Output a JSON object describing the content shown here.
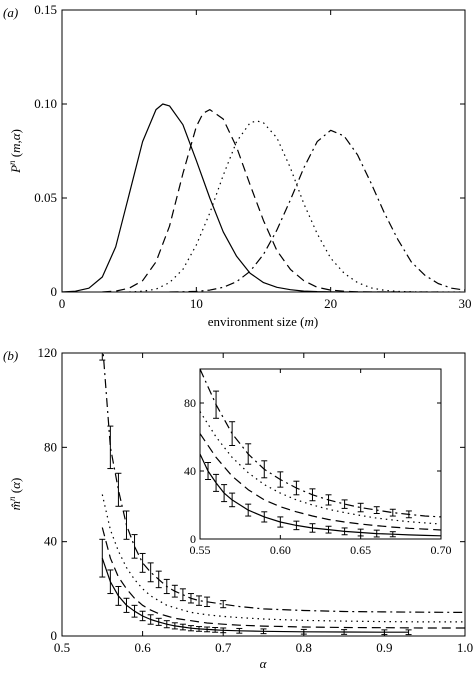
{
  "chart_data": [
    {
      "panel_label": "(a)",
      "type": "line",
      "xlabel": "environment size (m)",
      "ylabel": "P^n (m,α)",
      "xlim": [
        0,
        30
      ],
      "ylim": [
        0,
        0.15
      ],
      "xticks": [
        "0",
        "10",
        "20",
        "30"
      ],
      "yticks": [
        "0",
        "0.05",
        "0.10",
        "0.15"
      ],
      "series": [
        {
          "style": "solid",
          "x": [
            0,
            1,
            2,
            3,
            4,
            5,
            6,
            7,
            7.5,
            8,
            9,
            10,
            11,
            12,
            13,
            14,
            15,
            16,
            17,
            18,
            19,
            20,
            21,
            22,
            23,
            24,
            25
          ],
          "y": [
            0,
            0.0004,
            0.002,
            0.008,
            0.024,
            0.052,
            0.08,
            0.097,
            0.1,
            0.099,
            0.089,
            0.07,
            0.05,
            0.032,
            0.019,
            0.01,
            0.005,
            0.0025,
            0.0012,
            0.0005,
            0.0002,
            0.0001,
            0,
            0,
            0,
            0,
            0
          ]
        },
        {
          "style": "dashed",
          "x": [
            3,
            4,
            5,
            6,
            7,
            8,
            9,
            10,
            10.5,
            11,
            12,
            13,
            14,
            15,
            16,
            17,
            18,
            19,
            20,
            21,
            22,
            23,
            24,
            25,
            26,
            27,
            28
          ],
          "y": [
            0,
            0.0005,
            0.002,
            0.006,
            0.016,
            0.035,
            0.063,
            0.088,
            0.095,
            0.097,
            0.092,
            0.077,
            0.057,
            0.038,
            0.022,
            0.012,
            0.006,
            0.0025,
            0.001,
            0.0004,
            0.0001,
            0,
            0,
            0,
            0,
            0,
            0
          ]
        },
        {
          "style": "dotted",
          "x": [
            5,
            6,
            7,
            8,
            9,
            10,
            11,
            12,
            13,
            14,
            14.5,
            15,
            16,
            17,
            18,
            19,
            20,
            21,
            22,
            23,
            24,
            25,
            26,
            27,
            28,
            29,
            30
          ],
          "y": [
            0,
            0.0004,
            0.0015,
            0.005,
            0.012,
            0.025,
            0.042,
            0.062,
            0.08,
            0.09,
            0.091,
            0.09,
            0.082,
            0.066,
            0.047,
            0.031,
            0.018,
            0.01,
            0.005,
            0.0022,
            0.0009,
            0.0003,
            0.0001,
            0,
            0,
            0,
            0
          ]
        },
        {
          "style": "dash-dot",
          "x": [
            8,
            10,
            11,
            12,
            13,
            14,
            15,
            16,
            17,
            18,
            19,
            20,
            21,
            22,
            23,
            24,
            25,
            26,
            27,
            28,
            29,
            30
          ],
          "y": [
            0,
            0.0003,
            0.001,
            0.0025,
            0.0055,
            0.011,
            0.02,
            0.033,
            0.049,
            0.066,
            0.08,
            0.086,
            0.083,
            0.073,
            0.058,
            0.042,
            0.028,
            0.016,
            0.009,
            0.0045,
            0.002,
            0.001
          ]
        }
      ]
    },
    {
      "panel_label": "(b)",
      "type": "line",
      "xlabel": "α",
      "ylabel": "m̂^n (α)",
      "xlim": [
        0.5,
        1.0
      ],
      "ylim": [
        0,
        120
      ],
      "xticks": [
        "0.5",
        "0.6",
        "0.7",
        "0.8",
        "0.9",
        "1.0"
      ],
      "yticks": [
        "0",
        "40",
        "80",
        "120"
      ],
      "series": [
        {
          "style": "solid",
          "error_bars": true,
          "x": [
            0.55,
            0.56,
            0.57,
            0.58,
            0.59,
            0.6,
            0.61,
            0.62,
            0.63,
            0.64,
            0.65,
            0.66,
            0.67,
            0.68,
            0.69,
            0.7,
            0.72,
            0.75,
            0.8,
            0.85,
            0.9,
            0.93
          ],
          "y": [
            33,
            23,
            17,
            13,
            10.5,
            8.5,
            7,
            6,
            5,
            4.3,
            3.8,
            3.3,
            3,
            2.8,
            2.6,
            2.4,
            2.2,
            2,
            1.8,
            1.7,
            1.6,
            1.6
          ],
          "err": [
            8,
            5,
            4,
            3,
            2.5,
            2,
            2,
            1.5,
            1.5,
            1.3,
            1.2,
            1.1,
            1,
            1,
            1,
            1,
            1,
            1,
            1,
            1,
            1,
            1
          ]
        },
        {
          "style": "dashed",
          "x": [
            0.55,
            0.56,
            0.57,
            0.58,
            0.59,
            0.6,
            0.61,
            0.62,
            0.63,
            0.64,
            0.65,
            0.66,
            0.67,
            0.68,
            0.7,
            0.72,
            0.75,
            0.8,
            0.85,
            0.9,
            0.95,
            1.0
          ],
          "y": [
            46,
            33,
            25,
            20,
            16,
            13,
            11,
            9.5,
            8.5,
            7.5,
            7,
            6.5,
            6,
            5.5,
            5,
            4.6,
            4.2,
            3.8,
            3.6,
            3.5,
            3.4,
            3.4
          ]
        },
        {
          "style": "dotted",
          "x": [
            0.55,
            0.56,
            0.57,
            0.58,
            0.59,
            0.6,
            0.61,
            0.62,
            0.63,
            0.64,
            0.65,
            0.66,
            0.67,
            0.68,
            0.7,
            0.72,
            0.75,
            0.8,
            0.85,
            0.9,
            0.95,
            1.0
          ],
          "y": [
            60,
            45,
            36,
            29,
            24,
            20,
            17,
            15,
            13,
            12,
            11,
            10,
            9.5,
            9,
            8.3,
            7.8,
            7.2,
            6.6,
            6.3,
            6.1,
            6,
            6
          ]
        },
        {
          "style": "dash-dot",
          "error_bars": true,
          "x": [
            0.55,
            0.56,
            0.57,
            0.58,
            0.59,
            0.6,
            0.61,
            0.62,
            0.63,
            0.64,
            0.65,
            0.66,
            0.67,
            0.68,
            0.7,
            0.72,
            0.75,
            0.8,
            0.85,
            0.9,
            0.95,
            1.0
          ],
          "y": [
            125,
            80,
            62,
            47,
            38,
            31,
            27,
            24,
            21,
            19,
            17.5,
            16,
            15,
            14.5,
            13.5,
            12.5,
            11.5,
            10.8,
            10.4,
            10.2,
            10.1,
            10
          ],
          "err": [
            8,
            9,
            7,
            6,
            5,
            4,
            4,
            3.5,
            3,
            2.5,
            2.5,
            2,
            2,
            2,
            1.5,
            0,
            0,
            0,
            0,
            0,
            0,
            0
          ]
        }
      ],
      "inset": {
        "xlim": [
          0.55,
          0.7
        ],
        "ylim": [
          0,
          100
        ],
        "xticks": [
          "0.55",
          "0.60",
          "0.65",
          "0.70"
        ],
        "yticks": [
          "0",
          "40",
          "80"
        ],
        "series": [
          {
            "style": "solid",
            "error_bars": true,
            "x": [
              0.55,
              0.555,
              0.56,
              0.565,
              0.57,
              0.58,
              0.59,
              0.6,
              0.61,
              0.62,
              0.63,
              0.64,
              0.65,
              0.66,
              0.67,
              0.68,
              0.69,
              0.7
            ],
            "y": [
              50,
              40,
              33,
              27,
              23,
              17,
              13,
              10,
              8,
              6.5,
              5.5,
              4.5,
              3.8,
              3.2,
              2.8,
              2.4,
              2.1,
              1.9
            ],
            "err": [
              0,
              5,
              5,
              5,
              4,
              3.5,
              3,
              3,
              2.5,
              2.5,
              2,
              2,
              2,
              2,
              1.5,
              0,
              0,
              0
            ]
          },
          {
            "style": "dashed",
            "x": [
              0.55,
              0.56,
              0.57,
              0.58,
              0.59,
              0.6,
              0.61,
              0.62,
              0.63,
              0.64,
              0.65,
              0.66,
              0.67,
              0.68,
              0.69,
              0.7
            ],
            "y": [
              62,
              48,
              37,
              29,
              23,
              19,
              16,
              13.5,
              11.5,
              10,
              8.8,
              7.8,
              7,
              6.3,
              5.8,
              5.3
            ]
          },
          {
            "style": "dotted",
            "x": [
              0.55,
              0.56,
              0.57,
              0.58,
              0.59,
              0.6,
              0.61,
              0.62,
              0.63,
              0.64,
              0.65,
              0.66,
              0.67,
              0.68,
              0.69,
              0.7
            ],
            "y": [
              75,
              60,
              48,
              39,
              32,
              27,
              23,
              20,
              17.5,
              15.5,
              13.8,
              12.3,
              11.2,
              10.2,
              9.5,
              8.8
            ]
          },
          {
            "style": "dash-dot",
            "error_bars": true,
            "x": [
              0.55,
              0.56,
              0.57,
              0.58,
              0.59,
              0.6,
              0.61,
              0.62,
              0.63,
              0.64,
              0.65,
              0.66,
              0.67,
              0.68,
              0.69,
              0.7
            ],
            "y": [
              100,
              79,
              62,
              50,
              41,
              35,
              30,
              26,
              23,
              20.5,
              18.5,
              17,
              15.5,
              14.5,
              13.5,
              13
            ],
            "err": [
              0,
              8,
              7,
              6,
              5,
              4.5,
              4,
              3.5,
              3,
              2.5,
              2.5,
              2,
              2,
              2,
              0,
              0
            ]
          }
        ]
      }
    }
  ]
}
